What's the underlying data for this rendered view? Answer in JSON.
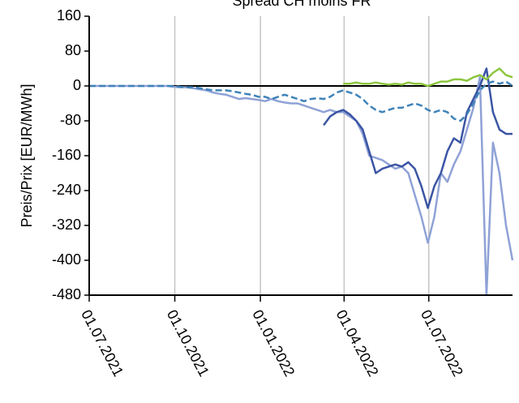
{
  "chart_data": {
    "type": "line",
    "title": "Spread CH moins FR",
    "y_label": "Preis/Prix [EUR/MWh]",
    "x": [
      "01.07.2021",
      "08.07.2021",
      "15.07.2021",
      "22.07.2021",
      "29.07.2021",
      "05.08.2021",
      "12.08.2021",
      "19.08.2021",
      "26.08.2021",
      "02.09.2021",
      "09.09.2021",
      "16.09.2021",
      "23.09.2021",
      "30.09.2021",
      "07.10.2021",
      "14.10.2021",
      "21.10.2021",
      "28.10.2021",
      "04.11.2021",
      "11.11.2021",
      "18.11.2021",
      "25.11.2021",
      "02.12.2021",
      "09.12.2021",
      "16.12.2021",
      "23.12.2021",
      "30.12.2021",
      "06.01.2022",
      "13.01.2022",
      "20.01.2022",
      "27.01.2022",
      "03.02.2022",
      "10.02.2022",
      "17.02.2022",
      "24.02.2022",
      "03.03.2022",
      "10.03.2022",
      "17.03.2022",
      "24.03.2022",
      "31.03.2022",
      "07.04.2022",
      "14.04.2022",
      "21.04.2022",
      "28.04.2022",
      "05.05.2022",
      "12.05.2022",
      "19.05.2022",
      "26.05.2022",
      "02.06.2022",
      "09.06.2022",
      "16.06.2022",
      "23.06.2022",
      "30.06.2022",
      "07.07.2022",
      "14.07.2022",
      "21.07.2022",
      "28.07.2022",
      "04.08.2022",
      "11.08.2022",
      "18.08.2022",
      "25.08.2022",
      "01.09.2022",
      "08.09.2022",
      "15.09.2022",
      "22.09.2022",
      "29.09.2022"
    ],
    "series": [
      {
        "color": "#8fa2d6",
        "dash": false,
        "values": [
          0,
          0,
          0,
          0,
          0,
          0,
          0,
          0,
          0,
          0,
          0,
          0,
          0,
          -2,
          -3,
          -3,
          -5,
          -8,
          -10,
          -15,
          -18,
          -20,
          -25,
          -30,
          -28,
          -30,
          -32,
          -35,
          -30,
          -35,
          -38,
          -40,
          -40,
          -45,
          -50,
          -55,
          -60,
          -55,
          -60,
          -60,
          -70,
          -80,
          -110,
          -160,
          -165,
          -170,
          -180,
          -190,
          -185,
          -200,
          -250,
          -300,
          -360,
          -300,
          -200,
          -220,
          -180,
          -150,
          -100,
          -50,
          20,
          -480,
          -130,
          -200,
          -320,
          -400
        ]
      },
      {
        "color": "#3b55a4",
        "dash": false,
        "values": [
          null,
          null,
          null,
          null,
          null,
          null,
          null,
          null,
          null,
          null,
          null,
          null,
          null,
          null,
          null,
          null,
          null,
          null,
          null,
          null,
          null,
          null,
          null,
          null,
          null,
          null,
          null,
          null,
          null,
          null,
          null,
          null,
          null,
          null,
          null,
          null,
          -90,
          -70,
          -60,
          -55,
          -65,
          -80,
          -100,
          -150,
          -200,
          -190,
          -185,
          -180,
          -185,
          -175,
          -190,
          -230,
          -280,
          -230,
          -200,
          -150,
          -120,
          -130,
          -60,
          -30,
          0,
          40,
          -60,
          -100,
          -110,
          -110
        ]
      },
      {
        "color": "#3f83b9",
        "dash": true,
        "values": [
          0,
          0,
          0,
          0,
          0,
          0,
          0,
          0,
          0,
          0,
          0,
          0,
          0,
          0,
          -2,
          -3,
          -3,
          -5,
          -8,
          -10,
          -10,
          -10,
          -12,
          -15,
          -18,
          -20,
          -25,
          -25,
          -30,
          -25,
          -20,
          -25,
          -30,
          -35,
          -30,
          -28,
          -30,
          -25,
          -15,
          -10,
          -15,
          -20,
          -30,
          -45,
          -55,
          -60,
          -55,
          -50,
          -50,
          -45,
          -40,
          -45,
          -55,
          -60,
          -55,
          -60,
          -75,
          -80,
          -65,
          -40,
          -10,
          5,
          10,
          5,
          10,
          0
        ]
      },
      {
        "color": "#8dc63f",
        "dash": false,
        "values": [
          null,
          null,
          null,
          null,
          null,
          null,
          null,
          null,
          null,
          null,
          null,
          null,
          null,
          null,
          null,
          null,
          null,
          null,
          null,
          null,
          null,
          null,
          null,
          null,
          null,
          null,
          null,
          null,
          null,
          null,
          null,
          null,
          null,
          null,
          null,
          null,
          null,
          null,
          null,
          5,
          5,
          8,
          5,
          5,
          8,
          5,
          3,
          5,
          3,
          8,
          5,
          5,
          0,
          5,
          10,
          10,
          15,
          15,
          12,
          20,
          25,
          15,
          30,
          40,
          25,
          20
        ]
      }
    ],
    "xlim": [
      "01.07.2021",
      "29.09.2022"
    ],
    "xticks": [
      "01.07.2021",
      "01.10.2021",
      "01.01.2022",
      "01.04.2022",
      "01.07.2022"
    ],
    "ylim": [
      -480,
      160
    ],
    "yticks": [
      -480,
      -400,
      -320,
      -240,
      -160,
      -80,
      0,
      80,
      160
    ],
    "grid": "x"
  }
}
